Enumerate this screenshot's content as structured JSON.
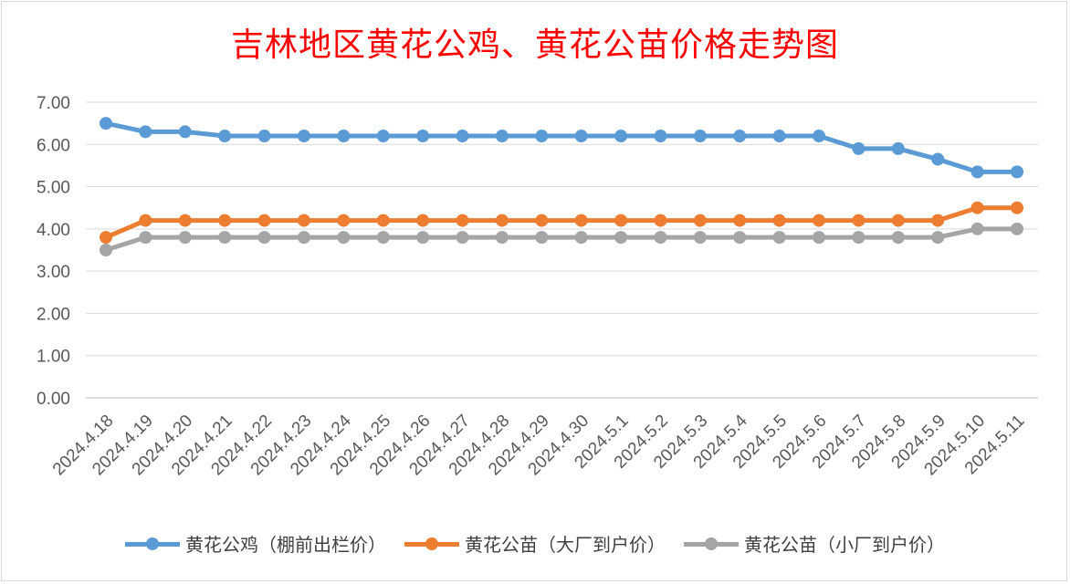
{
  "chart_data": {
    "type": "line",
    "title": "吉林地区黄花公鸡、黄花公苗价格走势图",
    "categories": [
      "2024.4.18",
      "2024.4.19",
      "2024.4.20",
      "2024.4.21",
      "2024.4.22",
      "2024.4.23",
      "2024.4.24",
      "2024.4.25",
      "2024.4.26",
      "2024.4.27",
      "2024.4.28",
      "2024.4.29",
      "2024.4.30",
      "2024.5.1",
      "2024.5.2",
      "2024.5.3",
      "2024.5.4",
      "2024.5.5",
      "2024.5.6",
      "2024.5.7",
      "2024.5.8",
      "2024.5.9",
      "2024.5.10",
      "2024.5.11"
    ],
    "yticks": [
      "0.00",
      "1.00",
      "2.00",
      "3.00",
      "4.00",
      "5.00",
      "6.00",
      "7.00"
    ],
    "ylim": [
      0,
      7
    ],
    "grid": true,
    "legend_position": "bottom",
    "series": [
      {
        "name": "黄花公鸡（棚前出栏价）",
        "color": "#5b9bd5",
        "values": [
          6.5,
          6.3,
          6.3,
          6.2,
          6.2,
          6.2,
          6.2,
          6.2,
          6.2,
          6.2,
          6.2,
          6.2,
          6.2,
          6.2,
          6.2,
          6.2,
          6.2,
          6.2,
          6.2,
          5.9,
          5.9,
          5.65,
          5.35,
          5.35
        ]
      },
      {
        "name": "黄花公苗（大厂到户价）",
        "color": "#ed7d31",
        "values": [
          3.8,
          4.2,
          4.2,
          4.2,
          4.2,
          4.2,
          4.2,
          4.2,
          4.2,
          4.2,
          4.2,
          4.2,
          4.2,
          4.2,
          4.2,
          4.2,
          4.2,
          4.2,
          4.2,
          4.2,
          4.2,
          4.2,
          4.5,
          4.5
        ]
      },
      {
        "name": "黄花公苗（小厂到户价）",
        "color": "#a5a5a5",
        "values": [
          3.5,
          3.8,
          3.8,
          3.8,
          3.8,
          3.8,
          3.8,
          3.8,
          3.8,
          3.8,
          3.8,
          3.8,
          3.8,
          3.8,
          3.8,
          3.8,
          3.8,
          3.8,
          3.8,
          3.8,
          3.8,
          3.8,
          4.0,
          4.0
        ]
      }
    ]
  }
}
